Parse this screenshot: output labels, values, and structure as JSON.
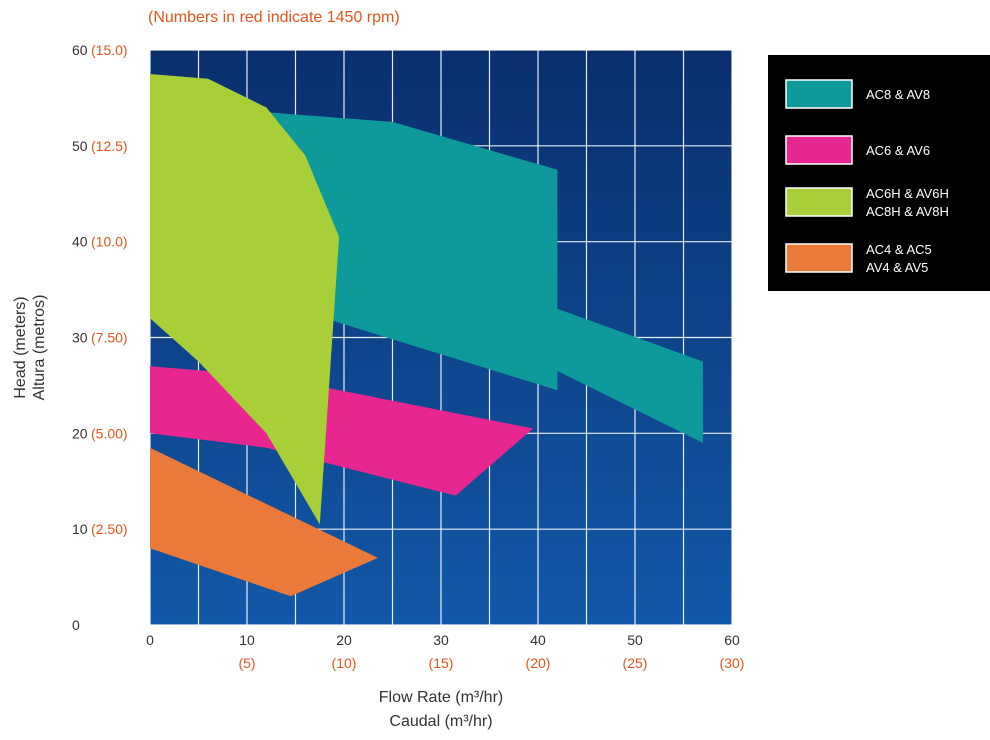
{
  "subtitle": "(Numbers in red indicate 1450 rpm)",
  "colors": {
    "plot_background": "#0b3f86",
    "grid": "#ffffff",
    "red_text": "#e8541e",
    "legend_background": "#000000"
  },
  "chart_data": {
    "type": "area",
    "title": "",
    "subtitle": "(Numbers in red indicate 1450 rpm)",
    "xlabel": [
      "Flow Rate (m³/hr)",
      "Caudal (m³/hr)"
    ],
    "ylabel": [
      "Head (meters)",
      "Altura (metros)"
    ],
    "xlim": [
      0,
      60
    ],
    "ylim": [
      0,
      60
    ],
    "grid": true,
    "legend_position": "right",
    "x_ticks": [
      0,
      10,
      20,
      30,
      40,
      50,
      60
    ],
    "x_ticks_1450": [
      {
        "at": 10,
        "label": "(5)"
      },
      {
        "at": 20,
        "label": "(10)"
      },
      {
        "at": 30,
        "label": "(15)"
      },
      {
        "at": 40,
        "label": "(20)"
      },
      {
        "at": 50,
        "label": "(25)"
      },
      {
        "at": 60,
        "label": "(30)"
      }
    ],
    "y_ticks": [
      {
        "at": 0,
        "label": "0",
        "red": ""
      },
      {
        "at": 10,
        "label": "10",
        "red": "(2.50)"
      },
      {
        "at": 20,
        "label": "20",
        "red": "(5.00)"
      },
      {
        "at": 30,
        "label": "30",
        "red": "(7.50)"
      },
      {
        "at": 40,
        "label": "40",
        "red": "(10.0)"
      },
      {
        "at": 50,
        "label": "50",
        "red": "(12.5)"
      },
      {
        "at": 60,
        "label": "60",
        "red": "(15.0)"
      }
    ],
    "series": [
      {
        "name": "AC8 & AV8",
        "color": "#0e9a9a",
        "outline": [
          [
            12,
            53.5
          ],
          [
            25,
            52.5
          ],
          [
            42,
            47.5
          ],
          [
            42,
            33
          ],
          [
            57,
            27.5
          ],
          [
            57,
            19
          ],
          [
            42,
            26.5
          ],
          [
            42,
            24.5
          ],
          [
            18,
            32
          ],
          [
            17,
            38
          ],
          [
            14,
            48
          ]
        ]
      },
      {
        "name": "AC6 & AV6",
        "color": "#e8268f",
        "outline": [
          [
            0,
            27
          ],
          [
            12,
            26
          ],
          [
            39.5,
            20.5
          ],
          [
            31.5,
            13.5
          ],
          [
            12,
            18.5
          ],
          [
            0,
            20
          ]
        ]
      },
      {
        "name": "AC6H & AV6H / AC8H & AV8H",
        "color": "#a9cf38",
        "outline": [
          [
            0,
            57.5
          ],
          [
            6,
            57
          ],
          [
            12,
            54
          ],
          [
            16,
            49
          ],
          [
            19.5,
            40.5
          ],
          [
            17.5,
            10.5
          ],
          [
            12,
            20
          ],
          [
            5,
            27.5
          ],
          [
            0,
            32
          ]
        ]
      },
      {
        "name": "AC4 & AC5 / AV4 & AV5",
        "color": "#e97a3a",
        "outline": [
          [
            0,
            18.5
          ],
          [
            23.5,
            7
          ],
          [
            14.5,
            3
          ],
          [
            0,
            8
          ]
        ]
      }
    ]
  },
  "legend": [
    {
      "lines": [
        "AC8 & AV8"
      ],
      "color": "#0e9a9a"
    },
    {
      "lines": [
        "AC6 & AV6"
      ],
      "color": "#e8268f"
    },
    {
      "lines": [
        "AC6H & AV6H",
        "AC8H & AV8H"
      ],
      "color": "#a9cf38"
    },
    {
      "lines": [
        "AC4 & AC5",
        "AV4 & AV5"
      ],
      "color": "#e97a3a"
    }
  ]
}
